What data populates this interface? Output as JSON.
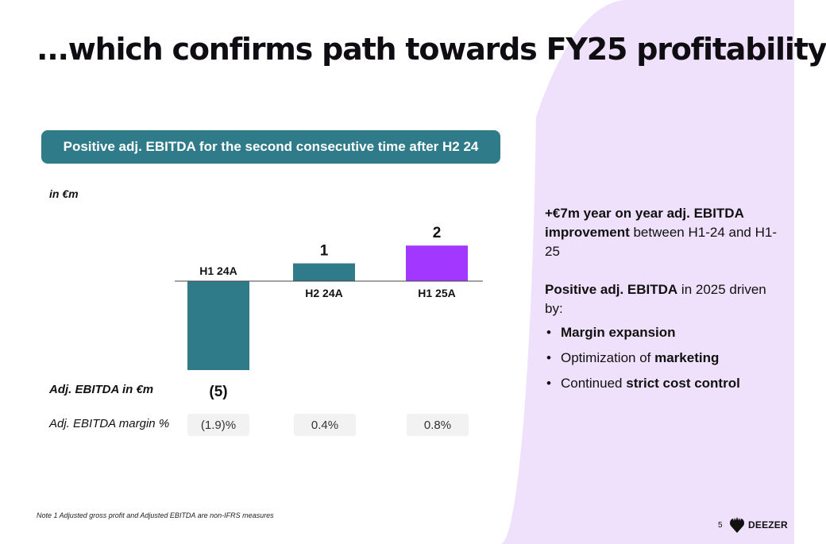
{
  "title": "...which confirms path towards FY25 profitability",
  "banner": "Positive adj. EBITDA for the second consecutive time after H2 24",
  "unit_label": "in €m",
  "row_labels": {
    "ebitda": "Adj. EBITDA in €m",
    "margin": "Adj. EBITDA margin %"
  },
  "chart_data": {
    "type": "bar",
    "categories": [
      "H1 24A",
      "H2 24A",
      "H1 25A"
    ],
    "values": [
      -5,
      1,
      2
    ],
    "value_labels": [
      "(5)",
      "1",
      "2"
    ],
    "margins": [
      "(1.9)%",
      "0.4%",
      "0.8%"
    ],
    "colors": [
      "#2f7b8a",
      "#2f7b8a",
      "#a238ff"
    ],
    "ylabel": "in €m"
  },
  "side": {
    "p1": {
      "a": "+€7m year on year adj. EBITDA improvement",
      "b": " between H1-24 and H1-25"
    },
    "p2": {
      "a": "Positive adj. EBITDA",
      "b": " in 2025 driven by:"
    },
    "bullets": {
      "b1": "Margin expansion",
      "b2a": "Optimization of ",
      "b2b": "marketing",
      "b3a": "Continued ",
      "b3b": "strict cost control"
    }
  },
  "footnote": "Note 1 Adjusted gross profit and Adjusted EBITDA are non-IFRS measures",
  "page_number": "5",
  "logo_text": "DEEZER",
  "colors": {
    "teal": "#2f7b8a",
    "purple": "#a238ff",
    "bg_lilac": "#efe0fb"
  }
}
